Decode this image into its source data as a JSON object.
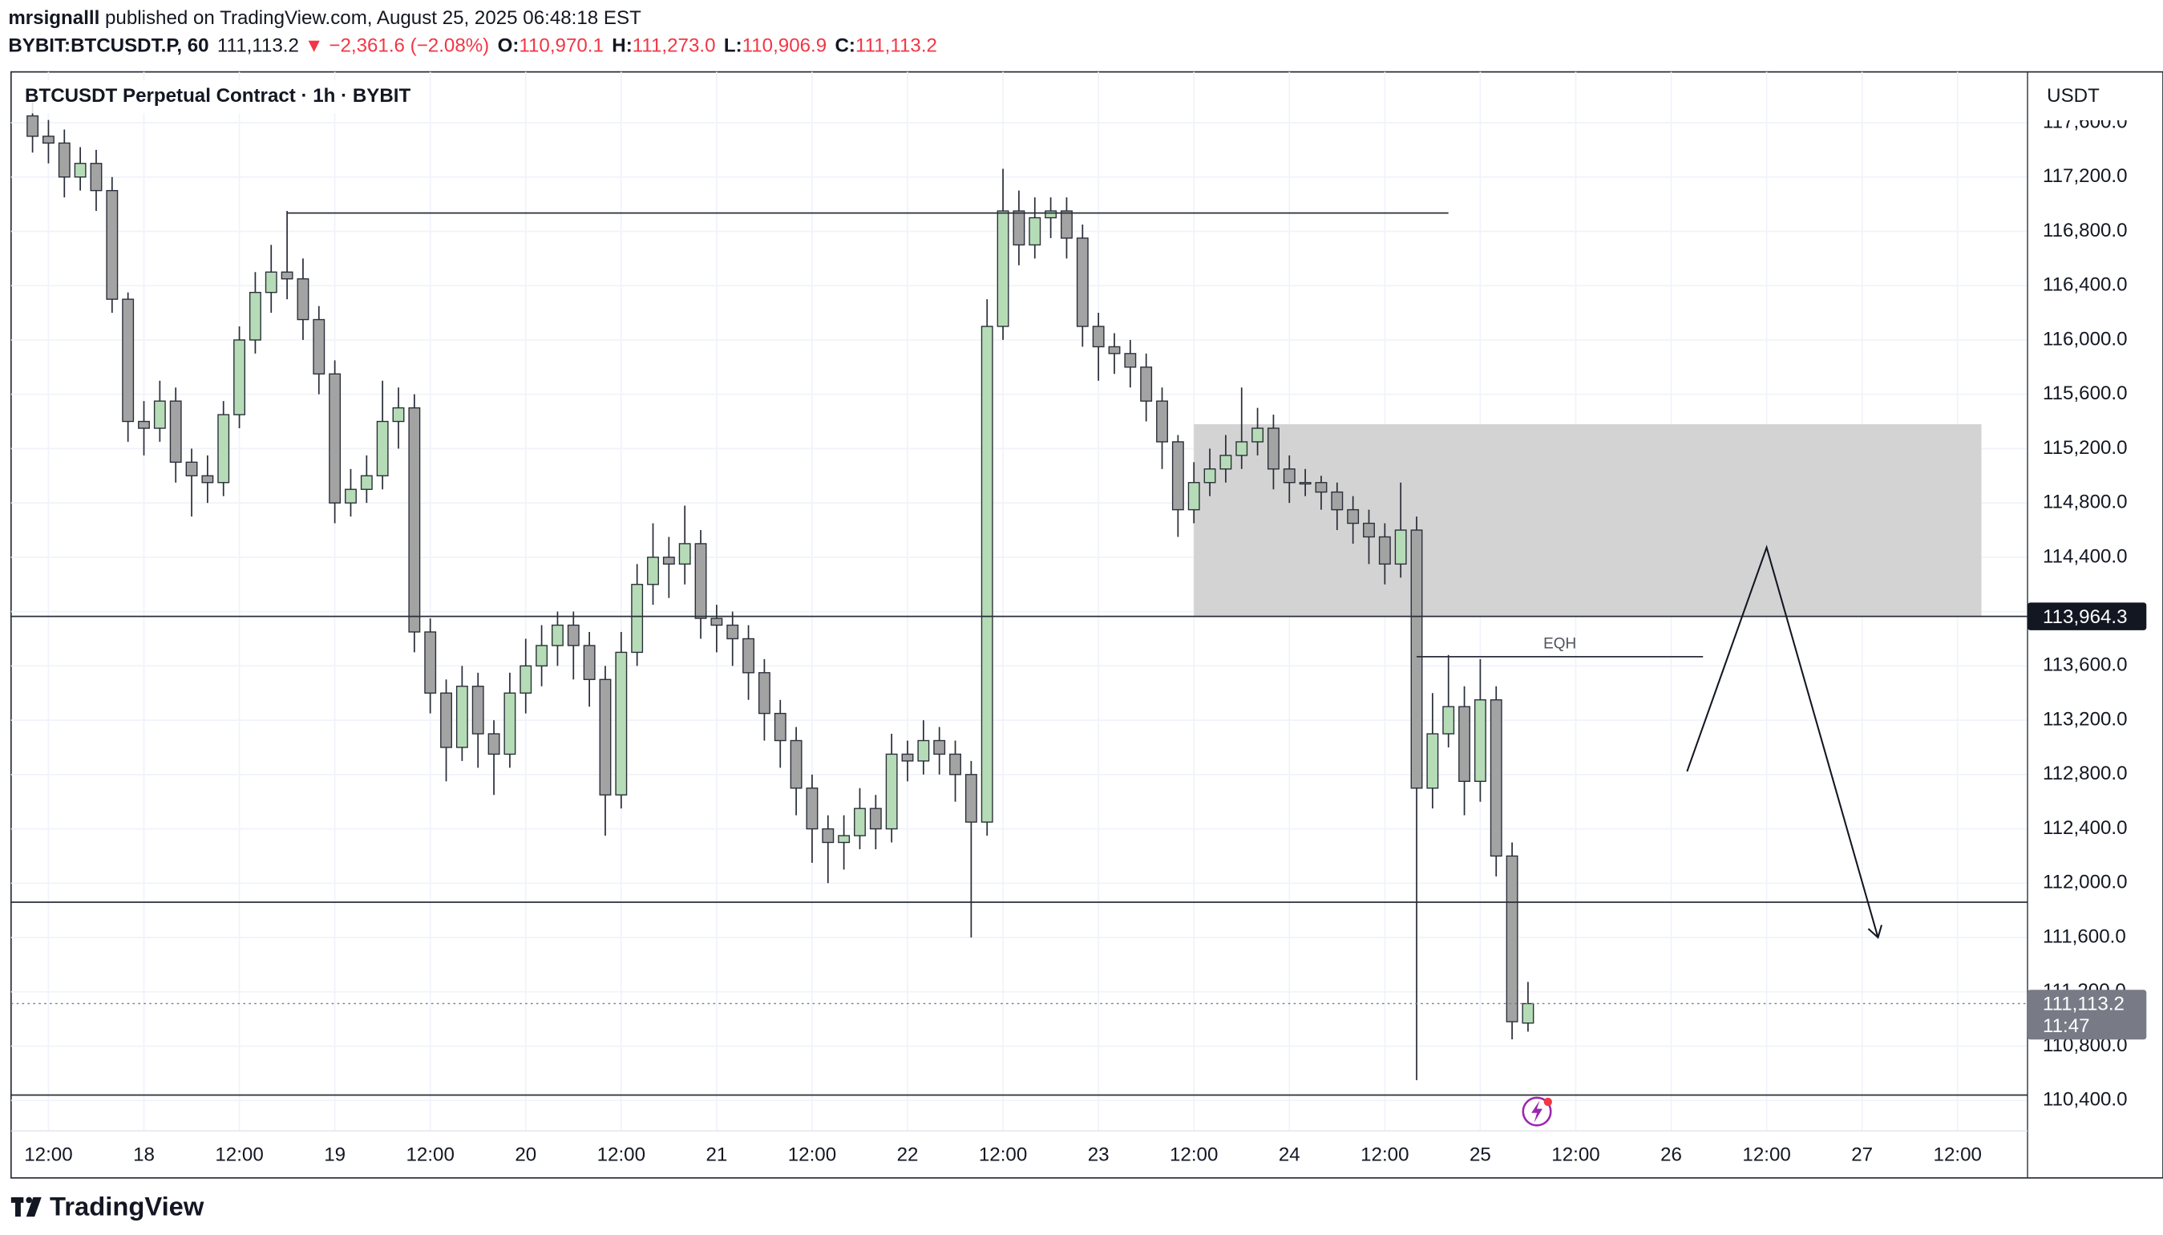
{
  "header": {
    "author": "mrsignalll",
    "published": " published on TradingView.com, August 25, 2025 06:48:18 EST",
    "symbol": "BYBIT:BTCUSDT.P, 60",
    "last": "111,113.2",
    "change": "▼ −2,361.6 (−2.08%)",
    "o_label": "O:",
    "o": "110,970.1",
    "h_label": "H:",
    "h": "111,273.0",
    "l_label": "L:",
    "l": "110,906.9",
    "c_label": "C:",
    "c": "111,113.2"
  },
  "chart_data": {
    "type": "candlestick",
    "title": "BTCUSDT Perpetual Contract · 1h · BYBIT",
    "y_unit": "USDT",
    "x": [
      "2025-08-17T10:00",
      "2025-08-17T12:00",
      "2025-08-17T14:00",
      "2025-08-17T16:00",
      "2025-08-17T18:00",
      "2025-08-17T20:00",
      "2025-08-17T22:00",
      "2025-08-18T00:00",
      "2025-08-18T02:00",
      "2025-08-18T04:00",
      "2025-08-18T06:00",
      "2025-08-18T08:00",
      "2025-08-18T10:00",
      "2025-08-18T12:00",
      "2025-08-18T14:00",
      "2025-08-18T16:00",
      "2025-08-18T18:00",
      "2025-08-18T20:00",
      "2025-08-18T22:00",
      "2025-08-19T00:00",
      "2025-08-19T02:00",
      "2025-08-19T04:00",
      "2025-08-19T06:00",
      "2025-08-19T08:00",
      "2025-08-19T10:00",
      "2025-08-19T12:00",
      "2025-08-19T14:00",
      "2025-08-19T16:00",
      "2025-08-19T18:00",
      "2025-08-19T20:00",
      "2025-08-19T22:00",
      "2025-08-20T00:00",
      "2025-08-20T02:00",
      "2025-08-20T04:00",
      "2025-08-20T06:00",
      "2025-08-20T08:00",
      "2025-08-20T10:00",
      "2025-08-20T12:00",
      "2025-08-20T14:00",
      "2025-08-20T16:00",
      "2025-08-20T18:00",
      "2025-08-20T20:00",
      "2025-08-20T22:00",
      "2025-08-21T00:00",
      "2025-08-21T02:00",
      "2025-08-21T04:00",
      "2025-08-21T06:00",
      "2025-08-21T08:00",
      "2025-08-21T10:00",
      "2025-08-21T12:00",
      "2025-08-21T14:00",
      "2025-08-21T16:00",
      "2025-08-21T18:00",
      "2025-08-21T20:00",
      "2025-08-21T22:00",
      "2025-08-22T00:00",
      "2025-08-22T02:00",
      "2025-08-22T04:00",
      "2025-08-22T06:00",
      "2025-08-22T08:00",
      "2025-08-22T10:00",
      "2025-08-22T12:00",
      "2025-08-22T14:00",
      "2025-08-22T16:00",
      "2025-08-22T18:00",
      "2025-08-22T20:00",
      "2025-08-22T22:00",
      "2025-08-23T00:00",
      "2025-08-23T02:00",
      "2025-08-23T04:00",
      "2025-08-23T06:00",
      "2025-08-23T08:00",
      "2025-08-23T10:00",
      "2025-08-23T12:00",
      "2025-08-23T14:00",
      "2025-08-23T16:00",
      "2025-08-23T18:00",
      "2025-08-23T20:00",
      "2025-08-23T22:00",
      "2025-08-24T00:00",
      "2025-08-24T02:00",
      "2025-08-24T04:00",
      "2025-08-24T06:00",
      "2025-08-24T08:00",
      "2025-08-24T10:00",
      "2025-08-24T12:00",
      "2025-08-24T14:00",
      "2025-08-24T16:00",
      "2025-08-24T18:00",
      "2025-08-24T20:00",
      "2025-08-24T22:00",
      "2025-08-25T00:00",
      "2025-08-25T02:00",
      "2025-08-25T04:00",
      "2025-08-25T06:00"
    ],
    "open": [
      117650,
      117500,
      117450,
      117200,
      117300,
      117100,
      116300,
      115400,
      115350,
      115550,
      115100,
      115000,
      114950,
      115450,
      116000,
      116350,
      116500,
      116450,
      116150,
      115750,
      114800,
      114900,
      115000,
      115400,
      115500,
      113850,
      113400,
      113000,
      113450,
      113100,
      112950,
      113400,
      113600,
      113750,
      113900,
      113750,
      113500,
      112650,
      113700,
      114200,
      114400,
      114350,
      114500,
      113950,
      113900,
      113800,
      113550,
      113250,
      113050,
      112700,
      112400,
      112300,
      112350,
      112550,
      112400,
      112950,
      112900,
      113050,
      112950,
      112800,
      112450,
      116100,
      116950,
      116700,
      116900,
      116950,
      116750,
      116100,
      115950,
      115900,
      115800,
      115550,
      115250,
      114750,
      114950,
      115050,
      115150,
      115250,
      115350,
      115050,
      114950,
      114950,
      114880,
      114750,
      114650,
      114550,
      114350,
      114600,
      112700,
      113100,
      113300,
      112750,
      113350,
      112200,
      110970.1
    ],
    "high": [
      117750,
      117620,
      117550,
      117420,
      117400,
      117200,
      116350,
      115550,
      115700,
      115650,
      115200,
      115150,
      115550,
      116100,
      116500,
      116700,
      116950,
      116600,
      116250,
      115850,
      115050,
      115150,
      115700,
      115650,
      115600,
      113950,
      113500,
      113600,
      113550,
      113200,
      113550,
      113800,
      113900,
      114000,
      114000,
      113850,
      113600,
      113850,
      114350,
      114650,
      114550,
      114780,
      114600,
      114050,
      114000,
      113900,
      113650,
      113350,
      113150,
      112800,
      112500,
      112500,
      112700,
      112650,
      113100,
      113050,
      113200,
      113150,
      113050,
      112900,
      116300,
      117260,
      117100,
      117050,
      117050,
      117050,
      116850,
      116200,
      116050,
      116000,
      115900,
      115650,
      115300,
      115100,
      115200,
      115300,
      115650,
      115500,
      115450,
      115150,
      115050,
      115000,
      114950,
      114850,
      114750,
      114650,
      114950,
      114700,
      113400,
      113680,
      113450,
      113650,
      113450,
      112300,
      111273
    ],
    "low": [
      117380,
      117300,
      117050,
      117100,
      116950,
      116200,
      115250,
      115150,
      115250,
      114950,
      114700,
      114800,
      114850,
      115350,
      115900,
      116200,
      116300,
      116000,
      115600,
      114650,
      114700,
      114800,
      114900,
      115200,
      113700,
      113250,
      112750,
      112900,
      112850,
      112650,
      112850,
      113250,
      113450,
      113600,
      113500,
      113300,
      112350,
      112550,
      113600,
      114050,
      114100,
      114200,
      113800,
      113700,
      113600,
      113350,
      113050,
      112850,
      112500,
      112150,
      112000,
      112100,
      112250,
      112250,
      112300,
      112750,
      112800,
      112800,
      112600,
      111600,
      112350,
      116000,
      116550,
      116600,
      116750,
      116600,
      115950,
      115700,
      115750,
      115650,
      115400,
      115050,
      114550,
      114650,
      114850,
      114950,
      115050,
      115150,
      114900,
      114800,
      114850,
      114750,
      114600,
      114500,
      114350,
      114200,
      114250,
      110550,
      112550,
      113000,
      112500,
      112600,
      112050,
      110850,
      110906.9
    ],
    "close": [
      117500,
      117450,
      117200,
      117300,
      117100,
      116300,
      115400,
      115350,
      115550,
      115100,
      115000,
      114950,
      115450,
      116000,
      116350,
      116500,
      116450,
      116150,
      115750,
      114800,
      114900,
      115000,
      115400,
      115500,
      113850,
      113400,
      113000,
      113450,
      113100,
      112950,
      113400,
      113600,
      113750,
      113900,
      113750,
      113500,
      112650,
      113700,
      114200,
      114400,
      114350,
      114500,
      113950,
      113900,
      113800,
      113550,
      113250,
      113050,
      112700,
      112400,
      112300,
      112350,
      112550,
      112400,
      112950,
      112900,
      113050,
      112950,
      112800,
      112450,
      116100,
      116950,
      116700,
      116900,
      116950,
      116750,
      116100,
      115950,
      115900,
      115800,
      115550,
      115250,
      114750,
      114950,
      115050,
      115150,
      115250,
      115350,
      115050,
      114950,
      114950,
      114880,
      114750,
      114650,
      114550,
      114350,
      114600,
      112700,
      113100,
      113300,
      112750,
      113350,
      112200,
      110980,
      111113.2
    ],
    "up_color": "#b5dcb6",
    "down_color": "#a3a3a3",
    "wick_color": "#2a2e39",
    "xlim": [
      "2025-08-17T07:18",
      "2025-08-27T20:48"
    ],
    "ylim": [
      110176,
      117974
    ],
    "xticks": [
      {
        "value": "2025-08-17T12:00",
        "label": "12:00"
      },
      {
        "value": "2025-08-18T00:00",
        "label": "18"
      },
      {
        "value": "2025-08-18T12:00",
        "label": "12:00"
      },
      {
        "value": "2025-08-19T00:00",
        "label": "19"
      },
      {
        "value": "2025-08-19T12:00",
        "label": "12:00"
      },
      {
        "value": "2025-08-20T00:00",
        "label": "20"
      },
      {
        "value": "2025-08-20T12:00",
        "label": "12:00"
      },
      {
        "value": "2025-08-21T00:00",
        "label": "21"
      },
      {
        "value": "2025-08-21T12:00",
        "label": "12:00"
      },
      {
        "value": "2025-08-22T00:00",
        "label": "22"
      },
      {
        "value": "2025-08-22T12:00",
        "label": "12:00"
      },
      {
        "value": "2025-08-23T00:00",
        "label": "23"
      },
      {
        "value": "2025-08-23T12:00",
        "label": "12:00"
      },
      {
        "value": "2025-08-24T00:00",
        "label": "24"
      },
      {
        "value": "2025-08-24T12:00",
        "label": "12:00"
      },
      {
        "value": "2025-08-25T00:00",
        "label": "25"
      },
      {
        "value": "2025-08-25T12:00",
        "label": "12:00"
      },
      {
        "value": "2025-08-26T00:00",
        "label": "26"
      },
      {
        "value": "2025-08-26T12:00",
        "label": "12:00"
      },
      {
        "value": "2025-08-27T00:00",
        "label": "27"
      },
      {
        "value": "2025-08-27T12:00",
        "label": "12:00"
      }
    ],
    "yticks": [
      {
        "value": 110400,
        "label": "110,400.0"
      },
      {
        "value": 110800,
        "label": "110,800.0"
      },
      {
        "value": 111200,
        "label": "111,200.0"
      },
      {
        "value": 111600,
        "label": "111,600.0"
      },
      {
        "value": 112000,
        "label": "112,000.0"
      },
      {
        "value": 112400,
        "label": "112,400.0"
      },
      {
        "value": 112800,
        "label": "112,800.0"
      },
      {
        "value": 113200,
        "label": "113,200.0"
      },
      {
        "value": 113600,
        "label": "113,600.0"
      },
      {
        "value": 114000,
        "label": "114,000.0"
      },
      {
        "value": 114400,
        "label": "114,400.0"
      },
      {
        "value": 114800,
        "label": "114,800.0"
      },
      {
        "value": 115200,
        "label": "115,200.0"
      },
      {
        "value": 115600,
        "label": "115,600.0"
      },
      {
        "value": 116000,
        "label": "116,000.0"
      },
      {
        "value": 116400,
        "label": "116,400.0"
      },
      {
        "value": 116800,
        "label": "116,800.0"
      },
      {
        "value": 117200,
        "label": "117,200.0"
      },
      {
        "value": 117600,
        "label": "117,600.0"
      }
    ],
    "grid": true,
    "zone": {
      "from": "2025-08-23T12:00",
      "to": "2025-08-27T15:00",
      "top": 115380,
      "bottom": 113964.3,
      "color": "#d3d3d3"
    },
    "levels": [
      {
        "value": 116935,
        "from": "2025-08-18T18:00",
        "to": "2025-08-24T20:00"
      },
      {
        "value": 113964.3
      },
      {
        "value": 111860
      },
      {
        "value": 110440
      },
      {
        "value": 113668,
        "from": "2025-08-24T16:00",
        "to": "2025-08-26T04:00",
        "label": "EQH"
      }
    ],
    "projection": {
      "x": [
        "2025-08-26T02:00",
        "2025-08-26T12:00",
        "2025-08-27T02:00"
      ],
      "y": [
        112823,
        114472,
        111600
      ]
    },
    "price_marker": {
      "value": 113964.3,
      "label": "113,964.3"
    },
    "last_marker": {
      "value": 111113.2,
      "label": "111,113.2",
      "countdown": "11:47"
    }
  },
  "footer": {
    "brand": "TradingView"
  }
}
